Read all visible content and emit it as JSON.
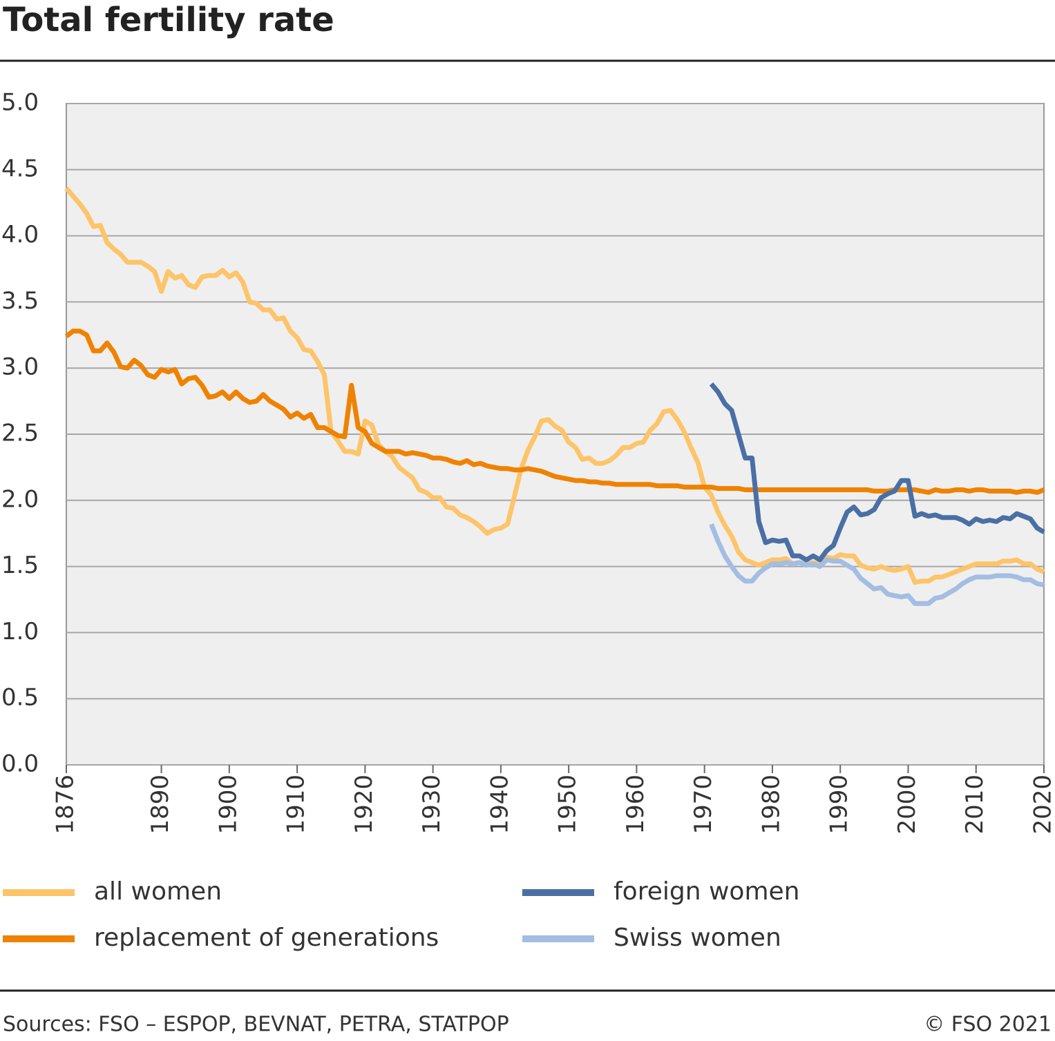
{
  "chart_data": {
    "type": "line",
    "title": "Total fertility rate",
    "source": "Sources: FSO – ESPOP, BEVNAT, PETRA, STATPOP",
    "copyright": "© FSO 2021",
    "x": [
      1876,
      1877,
      1878,
      1879,
      1880,
      1881,
      1882,
      1883,
      1884,
      1885,
      1886,
      1887,
      1888,
      1889,
      1890,
      1891,
      1892,
      1893,
      1894,
      1895,
      1896,
      1897,
      1898,
      1899,
      1900,
      1901,
      1902,
      1903,
      1904,
      1905,
      1906,
      1907,
      1908,
      1909,
      1910,
      1911,
      1912,
      1913,
      1914,
      1915,
      1916,
      1917,
      1918,
      1919,
      1920,
      1921,
      1922,
      1923,
      1924,
      1925,
      1926,
      1927,
      1928,
      1929,
      1930,
      1931,
      1932,
      1933,
      1934,
      1935,
      1936,
      1937,
      1938,
      1939,
      1940,
      1941,
      1942,
      1943,
      1944,
      1945,
      1946,
      1947,
      1948,
      1949,
      1950,
      1951,
      1952,
      1953,
      1954,
      1955,
      1956,
      1957,
      1958,
      1959,
      1960,
      1961,
      1962,
      1963,
      1964,
      1965,
      1966,
      1967,
      1968,
      1969,
      1970,
      1971,
      1972,
      1973,
      1974,
      1975,
      1976,
      1977,
      1978,
      1979,
      1980,
      1981,
      1982,
      1983,
      1984,
      1985,
      1986,
      1987,
      1988,
      1989,
      1990,
      1991,
      1992,
      1993,
      1994,
      1995,
      1996,
      1997,
      1998,
      1999,
      2000,
      2001,
      2002,
      2003,
      2004,
      2005,
      2006,
      2007,
      2008,
      2009,
      2010,
      2011,
      2012,
      2013,
      2014,
      2015,
      2016,
      2017,
      2018,
      2019,
      2020
    ],
    "xlim": [
      1876,
      2020
    ],
    "xticks": [
      1876,
      1890,
      1900,
      1910,
      1920,
      1930,
      1940,
      1950,
      1960,
      1970,
      1980,
      1990,
      2000,
      2010,
      2020
    ],
    "ylim": [
      0,
      5
    ],
    "yticks": [
      {
        "value": 0,
        "label": "0.0"
      },
      {
        "value": 0.5,
        "label": "0.5"
      },
      {
        "value": 1,
        "label": "1.0"
      },
      {
        "value": 1.5,
        "label": "1.5"
      },
      {
        "value": 2,
        "label": "2.0"
      },
      {
        "value": 2.5,
        "label": "2.5"
      },
      {
        "value": 3,
        "label": "3.0"
      },
      {
        "value": 3.5,
        "label": "3.5"
      },
      {
        "value": 4,
        "label": "4.0"
      },
      {
        "value": 4.5,
        "label": "4.5"
      },
      {
        "value": 5,
        "label": "5.0"
      }
    ],
    "grid": true,
    "series": [
      {
        "name": "all women",
        "color": "#fdc46a",
        "values": [
          4.36,
          4.3,
          4.24,
          4.17,
          4.07,
          4.08,
          3.95,
          3.9,
          3.86,
          3.8,
          3.8,
          3.8,
          3.77,
          3.73,
          3.58,
          3.73,
          3.68,
          3.7,
          3.63,
          3.61,
          3.69,
          3.7,
          3.7,
          3.74,
          3.69,
          3.72,
          3.65,
          3.5,
          3.49,
          3.44,
          3.44,
          3.37,
          3.38,
          3.28,
          3.23,
          3.14,
          3.13,
          3.05,
          2.95,
          2.52,
          2.45,
          2.37,
          2.37,
          2.35,
          2.6,
          2.57,
          2.42,
          2.37,
          2.33,
          2.25,
          2.21,
          2.17,
          2.08,
          2.06,
          2.02,
          2.02,
          1.95,
          1.94,
          1.89,
          1.87,
          1.84,
          1.8,
          1.75,
          1.78,
          1.79,
          1.82,
          2.03,
          2.24,
          2.38,
          2.48,
          2.6,
          2.61,
          2.56,
          2.53,
          2.44,
          2.4,
          2.31,
          2.32,
          2.28,
          2.28,
          2.3,
          2.34,
          2.4,
          2.4,
          2.43,
          2.44,
          2.53,
          2.58,
          2.67,
          2.68,
          2.61,
          2.52,
          2.4,
          2.29,
          2.1,
          2.04,
          1.91,
          1.81,
          1.73,
          1.61,
          1.55,
          1.53,
          1.51,
          1.53,
          1.55,
          1.55,
          1.56,
          1.52,
          1.53,
          1.52,
          1.53,
          1.52,
          1.57,
          1.56,
          1.59,
          1.58,
          1.58,
          1.51,
          1.49,
          1.48,
          1.5,
          1.48,
          1.47,
          1.48,
          1.5,
          1.38,
          1.39,
          1.39,
          1.42,
          1.42,
          1.44,
          1.46,
          1.48,
          1.5,
          1.52,
          1.52,
          1.52,
          1.52,
          1.54,
          1.54,
          1.55,
          1.52,
          1.52,
          1.48,
          1.46
        ]
      },
      {
        "name": "replacement of generations",
        "color": "#ef8200",
        "values": [
          3.24,
          3.28,
          3.28,
          3.25,
          3.13,
          3.13,
          3.19,
          3.12,
          3.01,
          3.0,
          3.06,
          3.02,
          2.95,
          2.93,
          2.99,
          2.97,
          2.99,
          2.88,
          2.92,
          2.93,
          2.87,
          2.78,
          2.79,
          2.82,
          2.77,
          2.82,
          2.77,
          2.74,
          2.75,
          2.8,
          2.75,
          2.72,
          2.69,
          2.63,
          2.66,
          2.62,
          2.65,
          2.55,
          2.55,
          2.52,
          2.49,
          2.48,
          2.87,
          2.55,
          2.52,
          2.43,
          2.4,
          2.37,
          2.37,
          2.37,
          2.35,
          2.36,
          2.35,
          2.34,
          2.32,
          2.32,
          2.31,
          2.29,
          2.28,
          2.3,
          2.27,
          2.28,
          2.26,
          2.25,
          2.24,
          2.24,
          2.23,
          2.23,
          2.24,
          2.23,
          2.22,
          2.2,
          2.18,
          2.17,
          2.16,
          2.15,
          2.15,
          2.14,
          2.14,
          2.13,
          2.13,
          2.12,
          2.12,
          2.12,
          2.12,
          2.12,
          2.12,
          2.11,
          2.11,
          2.11,
          2.11,
          2.1,
          2.1,
          2.1,
          2.1,
          2.1,
          2.09,
          2.09,
          2.09,
          2.09,
          2.08,
          2.08,
          2.08,
          2.08,
          2.08,
          2.08,
          2.08,
          2.08,
          2.08,
          2.08,
          2.08,
          2.08,
          2.08,
          2.08,
          2.08,
          2.08,
          2.08,
          2.08,
          2.08,
          2.07,
          2.07,
          2.07,
          2.08,
          2.08,
          2.08,
          2.08,
          2.07,
          2.06,
          2.08,
          2.07,
          2.07,
          2.08,
          2.08,
          2.07,
          2.08,
          2.08,
          2.07,
          2.07,
          2.07,
          2.07,
          2.06,
          2.07,
          2.07,
          2.06,
          2.08
        ]
      },
      {
        "name": "foreign women",
        "color": "#4a6fa5",
        "values": [
          null,
          null,
          null,
          null,
          null,
          null,
          null,
          null,
          null,
          null,
          null,
          null,
          null,
          null,
          null,
          null,
          null,
          null,
          null,
          null,
          null,
          null,
          null,
          null,
          null,
          null,
          null,
          null,
          null,
          null,
          null,
          null,
          null,
          null,
          null,
          null,
          null,
          null,
          null,
          null,
          null,
          null,
          null,
          null,
          null,
          null,
          null,
          null,
          null,
          null,
          null,
          null,
          null,
          null,
          null,
          null,
          null,
          null,
          null,
          null,
          null,
          null,
          null,
          null,
          null,
          null,
          null,
          null,
          null,
          null,
          null,
          null,
          null,
          null,
          null,
          null,
          null,
          null,
          null,
          null,
          null,
          null,
          null,
          null,
          null,
          null,
          null,
          null,
          null,
          null,
          null,
          null,
          null,
          null,
          null,
          2.88,
          2.82,
          2.73,
          2.68,
          2.5,
          2.32,
          2.32,
          1.84,
          1.68,
          1.7,
          1.69,
          1.7,
          1.58,
          1.58,
          1.55,
          1.58,
          1.55,
          1.62,
          1.66,
          1.79,
          1.91,
          1.95,
          1.89,
          1.9,
          1.93,
          2.02,
          2.05,
          2.07,
          2.15,
          2.15,
          1.88,
          1.9,
          1.88,
          1.89,
          1.87,
          1.87,
          1.87,
          1.85,
          1.82,
          1.86,
          1.84,
          1.85,
          1.84,
          1.87,
          1.86,
          1.9,
          1.88,
          1.86,
          1.79,
          1.76
        ]
      },
      {
        "name": "Swiss women",
        "color": "#a3bde3",
        "values": [
          null,
          null,
          null,
          null,
          null,
          null,
          null,
          null,
          null,
          null,
          null,
          null,
          null,
          null,
          null,
          null,
          null,
          null,
          null,
          null,
          null,
          null,
          null,
          null,
          null,
          null,
          null,
          null,
          null,
          null,
          null,
          null,
          null,
          null,
          null,
          null,
          null,
          null,
          null,
          null,
          null,
          null,
          null,
          null,
          null,
          null,
          null,
          null,
          null,
          null,
          null,
          null,
          null,
          null,
          null,
          null,
          null,
          null,
          null,
          null,
          null,
          null,
          null,
          null,
          null,
          null,
          null,
          null,
          null,
          null,
          null,
          null,
          null,
          null,
          null,
          null,
          null,
          null,
          null,
          null,
          null,
          null,
          null,
          null,
          null,
          null,
          null,
          null,
          null,
          null,
          null,
          null,
          null,
          null,
          null,
          1.82,
          1.69,
          1.58,
          1.5,
          1.43,
          1.39,
          1.39,
          1.45,
          1.49,
          1.52,
          1.52,
          1.53,
          1.52,
          1.53,
          1.51,
          1.52,
          1.5,
          1.55,
          1.54,
          1.54,
          1.51,
          1.48,
          1.41,
          1.37,
          1.33,
          1.34,
          1.29,
          1.28,
          1.27,
          1.28,
          1.22,
          1.22,
          1.22,
          1.26,
          1.27,
          1.3,
          1.33,
          1.37,
          1.4,
          1.42,
          1.42,
          1.42,
          1.43,
          1.43,
          1.43,
          1.42,
          1.4,
          1.4,
          1.37,
          1.36
        ]
      }
    ]
  }
}
